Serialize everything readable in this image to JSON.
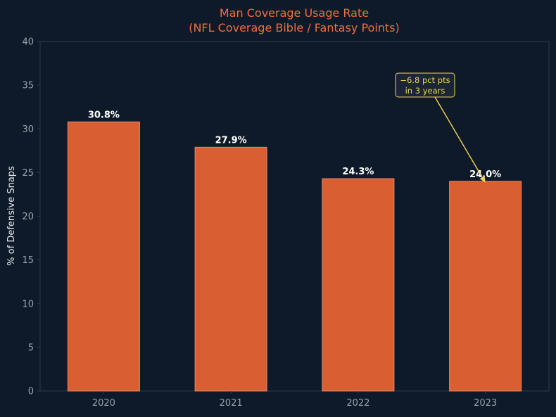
{
  "chart_data": {
    "type": "bar",
    "title": "Man Coverage Usage Rate",
    "subtitle": "(NFL Coverage Bible / Fantasy Points)",
    "xlabel": "",
    "ylabel": "% of Defensive Snaps",
    "categories": [
      "2020",
      "2021",
      "2022",
      "2023"
    ],
    "values": [
      30.8,
      27.9,
      24.3,
      24.0
    ],
    "data_labels": [
      "30.8%",
      "27.9%",
      "24.3%",
      "24.0%"
    ],
    "ylim": [
      0,
      40
    ],
    "yticks": [
      0,
      5,
      10,
      15,
      20,
      25,
      30,
      35,
      40
    ],
    "grid": false,
    "annotation": {
      "lines": [
        "−6.8 pct pts",
        "in 3 years"
      ],
      "target_category": "2023",
      "target_value": 24.0
    }
  },
  "colors": {
    "background": "#0e1a29",
    "bar": "#d95f33",
    "bar_edge": "#e8896a",
    "title": "#ee6f3c",
    "axis": "#2c3a4a",
    "tick_label": "#9aa3ad",
    "axis_label": "#e6e9ec",
    "data_label": "#ffffff",
    "annotation": "#f2d650",
    "annotation_box": "#1a2535"
  }
}
